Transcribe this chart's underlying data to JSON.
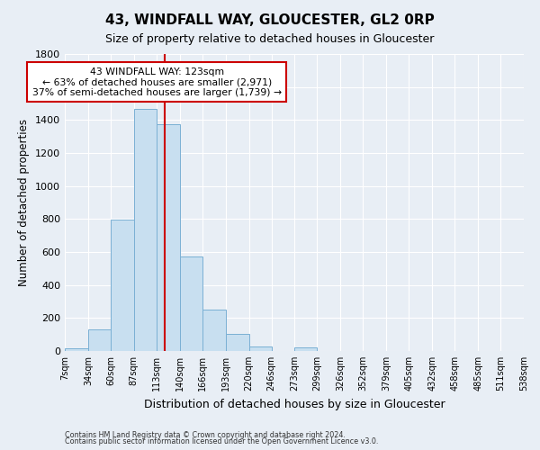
{
  "title": "43, WINDFALL WAY, GLOUCESTER, GL2 0RP",
  "subtitle": "Size of property relative to detached houses in Gloucester",
  "xlabel": "Distribution of detached houses by size in Gloucester",
  "ylabel": "Number of detached properties",
  "bin_edges": [
    7,
    34,
    60,
    87,
    113,
    140,
    166,
    193,
    220,
    246,
    273,
    299,
    326,
    352,
    379,
    405,
    432,
    458,
    485,
    511,
    538
  ],
  "bin_labels": [
    "7sqm",
    "34sqm",
    "60sqm",
    "87sqm",
    "113sqm",
    "140sqm",
    "166sqm",
    "193sqm",
    "220sqm",
    "246sqm",
    "273sqm",
    "299sqm",
    "326sqm",
    "352sqm",
    "379sqm",
    "405sqm",
    "432sqm",
    "458sqm",
    "485sqm",
    "511sqm",
    "538sqm"
  ],
  "counts": [
    15,
    130,
    795,
    1470,
    1375,
    575,
    250,
    105,
    30,
    0,
    20,
    0,
    0,
    0,
    0,
    0,
    0,
    0,
    0,
    0
  ],
  "bar_color": "#c8dff0",
  "bar_edge_color": "#7ab0d4",
  "vline_x": 123,
  "vline_color": "#cc0000",
  "ann_line1": "43 WINDFALL WAY: 123sqm",
  "ann_line2": "← 63% of detached houses are smaller (2,971)",
  "ann_line3": "37% of semi-detached houses are larger (1,739) →",
  "annotation_box_color": "#ffffff",
  "annotation_box_edge": "#cc0000",
  "ylim": [
    0,
    1800
  ],
  "yticks": [
    0,
    200,
    400,
    600,
    800,
    1000,
    1200,
    1400,
    1600,
    1800
  ],
  "footer_line1": "Contains HM Land Registry data © Crown copyright and database right 2024.",
  "footer_line2": "Contains public sector information licensed under the Open Government Licence v3.0.",
  "bg_color": "#e8eef5",
  "plot_bg_color": "#e8eef5",
  "grid_color": "#ffffff"
}
